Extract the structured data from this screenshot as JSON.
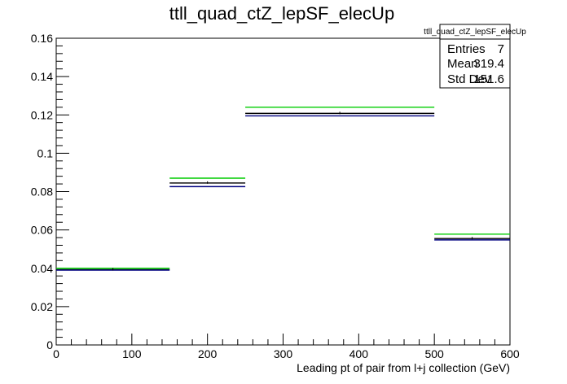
{
  "chart_data": {
    "type": "bar",
    "title": "ttll_quad_ctZ_lepSF_elecUp",
    "xlabel": "Leading pt of pair from l+j collection (GeV)",
    "ylabel": "",
    "xlim": [
      0,
      600
    ],
    "ylim": [
      0,
      0.16
    ],
    "x_ticks": [
      "0",
      "100",
      "200",
      "300",
      "400",
      "500",
      "600"
    ],
    "y_ticks": [
      "0",
      "0.02",
      "0.04",
      "0.06",
      "0.08",
      "0.1",
      "0.12",
      "0.14",
      "0.16"
    ],
    "bins": [
      [
        0,
        150
      ],
      [
        150,
        250
      ],
      [
        250,
        500
      ],
      [
        500,
        600
      ]
    ],
    "series": [
      {
        "color": "#00cc00",
        "values": [
          0.04,
          0.087,
          0.124,
          0.0578
        ]
      },
      {
        "color": "#000000",
        "values": [
          0.0393,
          0.0845,
          0.1208,
          0.0555
        ]
      },
      {
        "color": "#000080",
        "values": [
          0.039,
          0.0826,
          0.1195,
          0.0548
        ]
      }
    ],
    "grid": false,
    "stats_box": {
      "title": "ttll_quad_ctZ_lepSF_elecUp",
      "rows": [
        {
          "label": "Entries",
          "value": "7"
        },
        {
          "label": "Mean",
          "value": "319.4"
        },
        {
          "label": "Std Dev",
          "value": "151.6"
        }
      ]
    }
  }
}
